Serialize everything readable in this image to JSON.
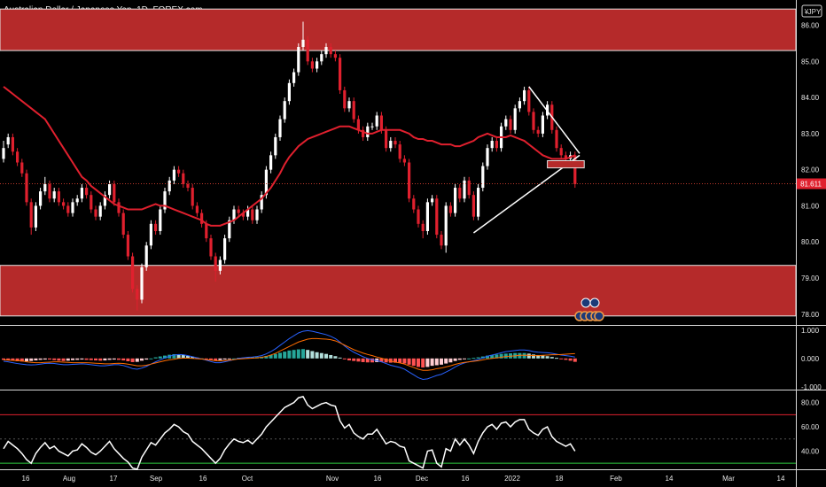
{
  "title": "Australian Dollar / Japanese Yen, 1D, FOREX.com",
  "currency_badge": "JPY",
  "currency_symbol": "¥",
  "price_badge": "81.611",
  "chart_data": [
    {
      "type": "candlestick",
      "title": "Australian Dollar / Japanese Yen, 1D, FOREX.com",
      "ylim": [
        77.7,
        86.7
      ],
      "yticks": [
        "86.00",
        "85.00",
        "84.00",
        "83.00",
        "82.00",
        "81.00",
        "80.00",
        "79.00",
        "78.00"
      ],
      "ytick_values": [
        86,
        85,
        84,
        83,
        82,
        81,
        80,
        79,
        78
      ],
      "xticks": [
        "16",
        "Aug",
        "17",
        "Sep",
        "16",
        "Oct",
        "Nov",
        "16",
        "Dec",
        "16",
        "2022",
        "18",
        "Feb",
        "14",
        "Mar",
        "14"
      ],
      "last_price": 81.611,
      "close": [
        82.6,
        82.9,
        82.5,
        82.2,
        81.9,
        81.1,
        80.4,
        81.0,
        81.4,
        81.6,
        81.2,
        81.4,
        81.1,
        81.0,
        80.8,
        81.1,
        81.2,
        81.5,
        81.3,
        80.9,
        80.7,
        81.0,
        81.3,
        81.6,
        81.1,
        80.8,
        80.2,
        79.6,
        78.7,
        78.4,
        79.3,
        79.9,
        80.5,
        80.3,
        80.9,
        81.4,
        81.7,
        82.0,
        81.9,
        81.6,
        81.5,
        81.0,
        80.8,
        80.5,
        80.1,
        79.6,
        79.2,
        79.5,
        80.1,
        80.6,
        80.9,
        80.8,
        80.7,
        80.9,
        80.6,
        80.9,
        81.3,
        82.0,
        82.4,
        82.9,
        83.4,
        83.9,
        84.4,
        84.7,
        85.4,
        85.6,
        85.0,
        84.8,
        85.0,
        85.2,
        85.4,
        85.2,
        85.1,
        84.2,
        83.7,
        83.9,
        83.4,
        83.1,
        82.9,
        83.2,
        83.2,
        83.5,
        83.1,
        82.6,
        82.8,
        82.7,
        82.3,
        82.2,
        81.2,
        80.9,
        80.5,
        80.3,
        81.1,
        81.2,
        80.2,
        79.9,
        81.0,
        80.8,
        81.5,
        81.2,
        81.7,
        81.3,
        80.7,
        81.5,
        82.1,
        82.6,
        82.8,
        82.6,
        83.2,
        83.4,
        83.1,
        83.7,
        83.9,
        84.2,
        83.6,
        83.1,
        83.0,
        83.5,
        83.8,
        83.1,
        82.6,
        82.4,
        82.3,
        82.4,
        81.6
      ],
      "open": [
        82.3,
        82.7,
        82.9,
        82.5,
        82.2,
        81.9,
        81.1,
        80.4,
        81.0,
        81.4,
        81.6,
        81.2,
        81.4,
        81.1,
        81.0,
        80.8,
        81.1,
        81.2,
        81.5,
        81.3,
        80.9,
        80.7,
        81.0,
        81.3,
        81.6,
        81.1,
        80.8,
        80.2,
        79.6,
        78.7,
        78.4,
        79.3,
        79.9,
        80.5,
        80.3,
        80.9,
        81.4,
        81.7,
        82.0,
        81.9,
        81.6,
        81.5,
        81.0,
        80.8,
        80.5,
        80.1,
        79.6,
        79.2,
        79.5,
        80.1,
        80.6,
        80.9,
        80.8,
        80.7,
        80.9,
        80.6,
        80.9,
        81.3,
        82.0,
        82.4,
        82.9,
        83.4,
        83.9,
        84.4,
        84.7,
        85.4,
        85.6,
        85.0,
        84.8,
        85.0,
        85.2,
        85.4,
        85.2,
        85.1,
        84.2,
        83.7,
        83.9,
        83.4,
        83.1,
        82.9,
        83.2,
        83.2,
        83.5,
        83.1,
        82.6,
        82.8,
        82.7,
        82.3,
        82.2,
        81.2,
        80.9,
        80.5,
        80.3,
        81.1,
        81.2,
        80.2,
        79.9,
        81.0,
        80.8,
        81.5,
        81.2,
        81.7,
        81.3,
        80.7,
        81.5,
        82.1,
        82.6,
        82.8,
        82.6,
        83.2,
        83.4,
        83.1,
        83.7,
        83.9,
        84.2,
        83.6,
        83.1,
        83.0,
        83.5,
        83.8,
        83.1,
        82.6,
        82.4,
        82.3,
        82.4
      ],
      "high": [
        82.8,
        83.0,
        83.0,
        82.6,
        82.3,
        82.0,
        81.2,
        81.1,
        81.5,
        81.8,
        81.7,
        81.5,
        81.5,
        81.2,
        81.1,
        81.2,
        81.3,
        81.6,
        81.6,
        81.4,
        81.0,
        81.1,
        81.4,
        81.7,
        81.7,
        81.2,
        80.9,
        80.3,
        79.7,
        78.8,
        79.4,
        80.0,
        80.6,
        80.6,
        81.0,
        81.5,
        81.8,
        82.1,
        82.1,
        82.0,
        81.7,
        81.6,
        81.1,
        80.9,
        80.6,
        80.2,
        79.7,
        79.6,
        80.2,
        80.7,
        81.0,
        81.0,
        80.9,
        81.0,
        81.0,
        81.0,
        81.4,
        82.1,
        82.5,
        83.0,
        83.5,
        84.0,
        84.5,
        84.8,
        85.5,
        86.1,
        85.7,
        85.1,
        85.1,
        85.3,
        85.5,
        85.5,
        85.3,
        85.2,
        84.3,
        84.0,
        84.0,
        83.5,
        83.2,
        83.3,
        83.3,
        83.6,
        83.6,
        83.2,
        82.9,
        82.9,
        82.8,
        82.4,
        82.3,
        81.3,
        81.0,
        80.6,
        81.2,
        81.3,
        81.3,
        80.3,
        81.1,
        81.1,
        81.6,
        81.6,
        81.8,
        81.8,
        81.4,
        81.6,
        82.2,
        82.7,
        82.9,
        82.9,
        83.3,
        83.5,
        83.5,
        83.8,
        84.0,
        84.3,
        84.3,
        83.7,
        83.2,
        83.6,
        83.9,
        83.9,
        83.2,
        82.7,
        82.5,
        82.5,
        82.5
      ],
      "low": [
        82.2,
        82.6,
        82.4,
        82.1,
        81.8,
        81.0,
        80.2,
        80.3,
        80.9,
        81.3,
        81.1,
        81.1,
        81.0,
        80.9,
        80.7,
        80.7,
        81.0,
        81.1,
        81.2,
        80.8,
        80.6,
        80.6,
        80.9,
        81.2,
        81.0,
        80.7,
        80.1,
        79.5,
        78.6,
        78.1,
        78.3,
        79.2,
        79.8,
        80.2,
        80.2,
        80.8,
        81.3,
        81.6,
        81.8,
        81.5,
        81.4,
        80.9,
        80.7,
        80.4,
        80.0,
        79.5,
        78.9,
        79.1,
        79.4,
        80.0,
        80.5,
        80.7,
        80.6,
        80.6,
        80.5,
        80.5,
        80.8,
        81.2,
        81.9,
        82.3,
        82.8,
        83.3,
        83.8,
        84.3,
        84.6,
        85.3,
        84.9,
        84.7,
        84.7,
        84.9,
        85.1,
        85.1,
        85.0,
        84.1,
        83.6,
        83.6,
        83.3,
        83.0,
        82.8,
        82.8,
        83.1,
        83.1,
        83.0,
        82.5,
        82.5,
        82.6,
        82.2,
        82.1,
        81.1,
        80.8,
        80.4,
        80.1,
        80.2,
        81.0,
        80.1,
        79.8,
        79.7,
        80.7,
        80.7,
        81.1,
        81.1,
        81.2,
        80.6,
        80.6,
        81.4,
        82.0,
        82.5,
        82.5,
        82.5,
        83.1,
        83.0,
        83.0,
        83.6,
        83.8,
        83.5,
        83.0,
        82.9,
        82.9,
        83.4,
        83.0,
        82.5,
        82.3,
        82.2,
        82.2,
        81.5
      ],
      "sma_line": [
        84.3,
        84.2,
        84.1,
        84.0,
        83.9,
        83.8,
        83.7,
        83.6,
        83.5,
        83.4,
        83.2,
        83.0,
        82.8,
        82.6,
        82.4,
        82.2,
        82.0,
        81.8,
        81.7,
        81.55,
        81.45,
        81.35,
        81.25,
        81.15,
        81.05,
        81.0,
        80.95,
        80.9,
        80.9,
        80.9,
        80.9,
        80.95,
        81.0,
        81.05,
        81.0,
        81.0,
        80.95,
        80.9,
        80.85,
        80.8,
        80.75,
        80.7,
        80.65,
        80.6,
        80.5,
        80.45,
        80.45,
        80.45,
        80.5,
        80.55,
        80.6,
        80.7,
        80.8,
        80.9,
        81.0,
        81.1,
        81.2,
        81.35,
        81.5,
        81.7,
        81.9,
        82.15,
        82.35,
        82.5,
        82.65,
        82.75,
        82.85,
        82.9,
        82.95,
        83.0,
        83.05,
        83.1,
        83.15,
        83.2,
        83.2,
        83.2,
        83.15,
        83.1,
        83.05,
        83.0,
        83.0,
        83.05,
        83.1,
        83.1,
        83.1,
        83.1,
        83.1,
        83.05,
        83.0,
        82.9,
        82.85,
        82.85,
        82.8,
        82.8,
        82.75,
        82.7,
        82.7,
        82.7,
        82.65,
        82.65,
        82.7,
        82.75,
        82.8,
        82.9,
        82.95,
        83.0,
        82.95,
        82.9,
        82.9,
        82.9,
        82.95,
        82.9,
        82.85,
        82.8,
        82.7,
        82.6,
        82.5,
        82.4,
        82.35,
        82.3,
        82.3,
        82.3,
        82.3,
        82.35,
        82.4
      ],
      "resistance_zone": [
        85.3,
        86.45
      ],
      "support_zone": [
        77.95,
        79.35
      ],
      "order_block": [
        82.05,
        82.25
      ],
      "triangle_upper": [
        [
          114,
          84.3
        ],
        [
          125,
          82.45
        ]
      ],
      "triangle_lower": [
        [
          102,
          80.25
        ],
        [
          125,
          82.4
        ]
      ]
    },
    {
      "type": "histogram_line",
      "name": "MACD",
      "ylim": [
        -1.1,
        1.15
      ],
      "yticks": [
        "1.000",
        "0.000",
        "-1.000"
      ],
      "ytick_values": [
        1,
        0,
        -1
      ],
      "histogram": [
        -0.05,
        -0.06,
        -0.08,
        -0.1,
        -0.11,
        -0.1,
        -0.09,
        -0.07,
        -0.05,
        -0.04,
        -0.04,
        -0.06,
        -0.08,
        -0.09,
        -0.08,
        -0.06,
        -0.05,
        -0.04,
        -0.05,
        -0.06,
        -0.07,
        -0.08,
        -0.07,
        -0.05,
        -0.04,
        -0.05,
        -0.07,
        -0.1,
        -0.13,
        -0.12,
        -0.08,
        -0.04,
        0.0,
        0.04,
        0.07,
        0.1,
        0.13,
        0.15,
        0.14,
        0.12,
        0.09,
        0.06,
        0.03,
        0.0,
        -0.02,
        -0.05,
        -0.07,
        -0.06,
        -0.04,
        -0.02,
        0.0,
        0.02,
        0.03,
        0.04,
        0.04,
        0.05,
        0.06,
        0.09,
        0.12,
        0.16,
        0.2,
        0.24,
        0.28,
        0.3,
        0.32,
        0.33,
        0.3,
        0.26,
        0.22,
        0.19,
        0.16,
        0.12,
        0.08,
        0.03,
        -0.03,
        -0.07,
        -0.09,
        -0.11,
        -0.13,
        -0.14,
        -0.14,
        -0.13,
        -0.13,
        -0.14,
        -0.15,
        -0.15,
        -0.16,
        -0.18,
        -0.22,
        -0.26,
        -0.3,
        -0.32,
        -0.3,
        -0.26,
        -0.24,
        -0.22,
        -0.18,
        -0.14,
        -0.09,
        -0.05,
        -0.02,
        0.0,
        0.02,
        0.04,
        0.07,
        0.1,
        0.12,
        0.14,
        0.16,
        0.17,
        0.18,
        0.19,
        0.19,
        0.19,
        0.17,
        0.14,
        0.12,
        0.1,
        0.08,
        0.05,
        0.02,
        -0.02,
        -0.05,
        -0.08,
        -0.12
      ],
      "macd_line": [
        -0.1,
        -0.12,
        -0.15,
        -0.18,
        -0.2,
        -0.22,
        -0.23,
        -0.22,
        -0.2,
        -0.18,
        -0.17,
        -0.18,
        -0.2,
        -0.22,
        -0.22,
        -0.21,
        -0.2,
        -0.19,
        -0.2,
        -0.22,
        -0.24,
        -0.26,
        -0.26,
        -0.24,
        -0.22,
        -0.22,
        -0.25,
        -0.3,
        -0.36,
        -0.38,
        -0.34,
        -0.28,
        -0.2,
        -0.12,
        -0.05,
        0.02,
        0.08,
        0.12,
        0.14,
        0.13,
        0.1,
        0.06,
        0.02,
        -0.02,
        -0.06,
        -0.11,
        -0.15,
        -0.15,
        -0.12,
        -0.08,
        -0.04,
        0.0,
        0.02,
        0.04,
        0.05,
        0.07,
        0.1,
        0.16,
        0.24,
        0.34,
        0.46,
        0.58,
        0.7,
        0.8,
        0.9,
        0.96,
        0.98,
        0.96,
        0.92,
        0.88,
        0.84,
        0.78,
        0.7,
        0.58,
        0.44,
        0.32,
        0.22,
        0.14,
        0.06,
        0.0,
        -0.04,
        -0.08,
        -0.12,
        -0.18,
        -0.24,
        -0.28,
        -0.32,
        -0.38,
        -0.48,
        -0.58,
        -0.68,
        -0.74,
        -0.72,
        -0.66,
        -0.6,
        -0.56,
        -0.48,
        -0.4,
        -0.3,
        -0.22,
        -0.16,
        -0.12,
        -0.08,
        -0.04,
        0.02,
        0.08,
        0.12,
        0.16,
        0.2,
        0.24,
        0.26,
        0.28,
        0.3,
        0.3,
        0.28,
        0.24,
        0.22,
        0.21,
        0.2,
        0.18,
        0.15,
        0.12,
        0.1,
        0.08,
        0.05
      ],
      "signal_line": [
        -0.05,
        -0.06,
        -0.07,
        -0.08,
        -0.09,
        -0.12,
        -0.14,
        -0.15,
        -0.15,
        -0.14,
        -0.13,
        -0.12,
        -0.12,
        -0.13,
        -0.14,
        -0.15,
        -0.15,
        -0.15,
        -0.15,
        -0.16,
        -0.17,
        -0.18,
        -0.19,
        -0.19,
        -0.18,
        -0.17,
        -0.18,
        -0.2,
        -0.23,
        -0.26,
        -0.26,
        -0.24,
        -0.2,
        -0.16,
        -0.12,
        -0.08,
        -0.05,
        -0.03,
        0.0,
        0.01,
        0.01,
        0.0,
        -0.01,
        -0.02,
        -0.04,
        -0.06,
        -0.08,
        -0.09,
        -0.08,
        -0.06,
        -0.04,
        -0.02,
        -0.01,
        0.0,
        0.01,
        0.02,
        0.04,
        0.07,
        0.12,
        0.18,
        0.26,
        0.34,
        0.42,
        0.5,
        0.58,
        0.63,
        0.68,
        0.7,
        0.7,
        0.69,
        0.68,
        0.66,
        0.62,
        0.55,
        0.47,
        0.39,
        0.31,
        0.25,
        0.19,
        0.14,
        0.1,
        0.05,
        0.01,
        -0.04,
        -0.09,
        -0.13,
        -0.16,
        -0.2,
        -0.26,
        -0.32,
        -0.38,
        -0.42,
        -0.42,
        -0.4,
        -0.36,
        -0.34,
        -0.3,
        -0.26,
        -0.21,
        -0.17,
        -0.14,
        -0.12,
        -0.1,
        -0.08,
        -0.05,
        -0.02,
        0.0,
        0.02,
        0.04,
        0.07,
        0.08,
        0.09,
        0.11,
        0.11,
        0.11,
        0.1,
        0.1,
        0.11,
        0.12,
        0.13,
        0.13,
        0.14,
        0.15,
        0.16,
        0.17
      ]
    },
    {
      "type": "line",
      "name": "RSI",
      "ylim": [
        25,
        90
      ],
      "yticks": [
        "80.00",
        "60.00",
        "40.00"
      ],
      "ytick_values": [
        80,
        60,
        40
      ],
      "upper_level": 70,
      "lower_level": 30,
      "values": [
        42,
        48,
        45,
        42,
        38,
        33,
        30,
        38,
        43,
        47,
        42,
        44,
        40,
        38,
        36,
        40,
        41,
        46,
        43,
        39,
        37,
        40,
        44,
        48,
        42,
        38,
        34,
        31,
        26,
        25,
        35,
        41,
        47,
        45,
        50,
        55,
        58,
        62,
        60,
        56,
        54,
        48,
        45,
        42,
        38,
        34,
        30,
        34,
        41,
        46,
        50,
        48,
        47,
        49,
        46,
        50,
        54,
        60,
        64,
        68,
        72,
        76,
        78,
        80,
        84,
        85,
        78,
        75,
        77,
        79,
        80,
        78,
        77,
        65,
        59,
        62,
        55,
        52,
        50,
        54,
        54,
        58,
        52,
        46,
        48,
        47,
        44,
        43,
        32,
        30,
        28,
        26,
        40,
        41,
        30,
        27,
        42,
        40,
        50,
        45,
        50,
        45,
        38,
        48,
        55,
        60,
        62,
        58,
        63,
        64,
        60,
        64,
        66,
        66,
        58,
        55,
        53,
        58,
        60,
        52,
        48,
        46,
        44,
        46,
        40
      ]
    }
  ]
}
